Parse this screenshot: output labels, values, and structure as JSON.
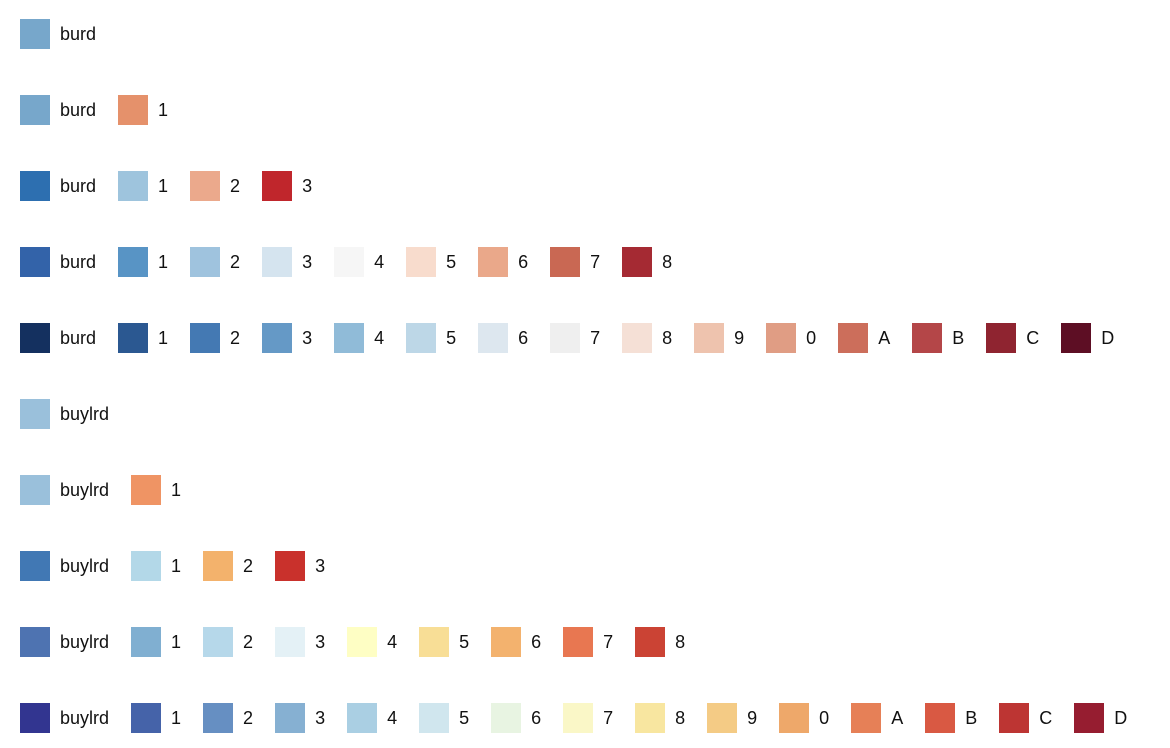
{
  "rows": [
    {
      "items": [
        {
          "label": "burd",
          "color": "#77a7cb"
        }
      ]
    },
    {
      "items": [
        {
          "label": "burd",
          "color": "#77a7cb"
        },
        {
          "label": "1",
          "color": "#e5916b"
        }
      ]
    },
    {
      "items": [
        {
          "label": "burd",
          "color": "#2d6fb0"
        },
        {
          "label": "1",
          "color": "#9ec4dd"
        },
        {
          "label": "2",
          "color": "#eba98c"
        },
        {
          "label": "3",
          "color": "#c0262c"
        }
      ]
    },
    {
      "items": [
        {
          "label": "burd",
          "color": "#3363a9"
        },
        {
          "label": "1",
          "color": "#5894c5"
        },
        {
          "label": "2",
          "color": "#9fc3de"
        },
        {
          "label": "3",
          "color": "#d5e4ef"
        },
        {
          "label": "4",
          "color": "#f6f6f6"
        },
        {
          "label": "5",
          "color": "#f8dccd"
        },
        {
          "label": "6",
          "color": "#eaa88a"
        },
        {
          "label": "7",
          "color": "#c96853"
        },
        {
          "label": "8",
          "color": "#a52a33"
        }
      ]
    },
    {
      "items": [
        {
          "label": "burd",
          "color": "#14305f"
        },
        {
          "label": "1",
          "color": "#2b5891"
        },
        {
          "label": "2",
          "color": "#4479b3"
        },
        {
          "label": "3",
          "color": "#6599c6"
        },
        {
          "label": "4",
          "color": "#90bbd8"
        },
        {
          "label": "5",
          "color": "#bdd7e7"
        },
        {
          "label": "6",
          "color": "#dde7ef"
        },
        {
          "label": "7",
          "color": "#efefef"
        },
        {
          "label": "8",
          "color": "#f5e0d6"
        },
        {
          "label": "9",
          "color": "#eec3ae"
        },
        {
          "label": "0",
          "color": "#e09d84"
        },
        {
          "label": "A",
          "color": "#cc6e5b"
        },
        {
          "label": "B",
          "color": "#b44648"
        },
        {
          "label": "C",
          "color": "#8f2430"
        },
        {
          "label": "D",
          "color": "#5d0e24"
        }
      ]
    },
    {
      "items": [
        {
          "label": "buylrd",
          "color": "#9ac0db"
        }
      ]
    },
    {
      "items": [
        {
          "label": "buylrd",
          "color": "#9ac0db"
        },
        {
          "label": "1",
          "color": "#ef9464"
        }
      ]
    },
    {
      "items": [
        {
          "label": "buylrd",
          "color": "#4178b4"
        },
        {
          "label": "1",
          "color": "#b3d8e8"
        },
        {
          "label": "2",
          "color": "#f3b26c"
        },
        {
          "label": "3",
          "color": "#c9312c"
        }
      ]
    },
    {
      "items": [
        {
          "label": "buylrd",
          "color": "#4e73b1"
        },
        {
          "label": "1",
          "color": "#80afd1"
        },
        {
          "label": "2",
          "color": "#b6d8ea"
        },
        {
          "label": "3",
          "color": "#e4f1f6"
        },
        {
          "label": "4",
          "color": "#fefec4"
        },
        {
          "label": "5",
          "color": "#f8de96"
        },
        {
          "label": "6",
          "color": "#f3b26e"
        },
        {
          "label": "7",
          "color": "#e87751"
        },
        {
          "label": "8",
          "color": "#cb4334"
        }
      ]
    },
    {
      "items": [
        {
          "label": "buylrd",
          "color": "#323590"
        },
        {
          "label": "1",
          "color": "#4563a9"
        },
        {
          "label": "2",
          "color": "#668fc2"
        },
        {
          "label": "3",
          "color": "#86b0d2"
        },
        {
          "label": "4",
          "color": "#aacfe3"
        },
        {
          "label": "5",
          "color": "#d0e6ee"
        },
        {
          "label": "6",
          "color": "#e8f4e2"
        },
        {
          "label": "7",
          "color": "#faf7c7"
        },
        {
          "label": "8",
          "color": "#f8e6a0"
        },
        {
          "label": "9",
          "color": "#f4cb85"
        },
        {
          "label": "0",
          "color": "#eea86a"
        },
        {
          "label": "A",
          "color": "#e68057"
        },
        {
          "label": "B",
          "color": "#d95943"
        },
        {
          "label": "C",
          "color": "#bd3533"
        },
        {
          "label": "D",
          "color": "#961d30"
        }
      ]
    }
  ]
}
